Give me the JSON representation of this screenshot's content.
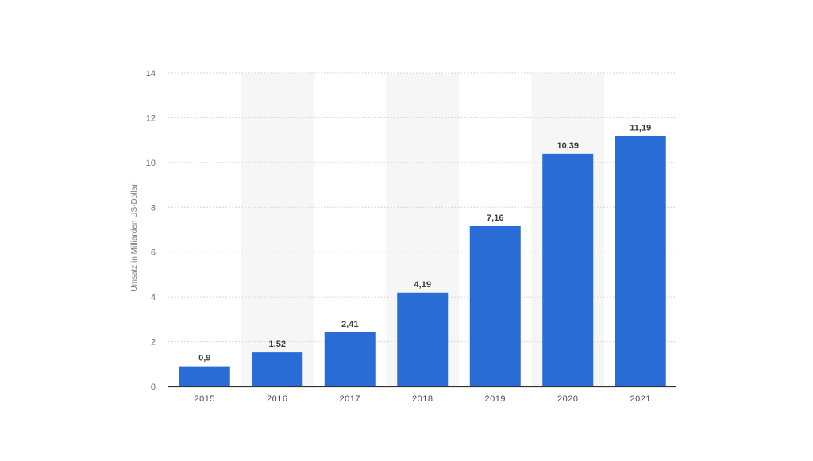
{
  "chart_data": {
    "type": "bar",
    "categories": [
      "2015",
      "2016",
      "2017",
      "2018",
      "2019",
      "2020",
      "2021"
    ],
    "values": [
      0.9,
      1.52,
      2.41,
      4.19,
      7.16,
      10.39,
      11.19
    ],
    "data_labels": [
      "0,9",
      "1,52",
      "2,41",
      "4,19",
      "7,16",
      "10,39",
      "11,19"
    ],
    "title": "",
    "xlabel": "",
    "ylabel": "Umsatz in Milliarden US-Dollar",
    "ylim": [
      0,
      14
    ],
    "yticks": [
      "0",
      "2",
      "4",
      "6",
      "8",
      "10",
      "12",
      "14"
    ],
    "grid": true,
    "colors": {
      "bar": "#2a6cd6",
      "grid": "#d6d6d6",
      "band": "#f6f6f6",
      "axis": "#333333"
    }
  }
}
